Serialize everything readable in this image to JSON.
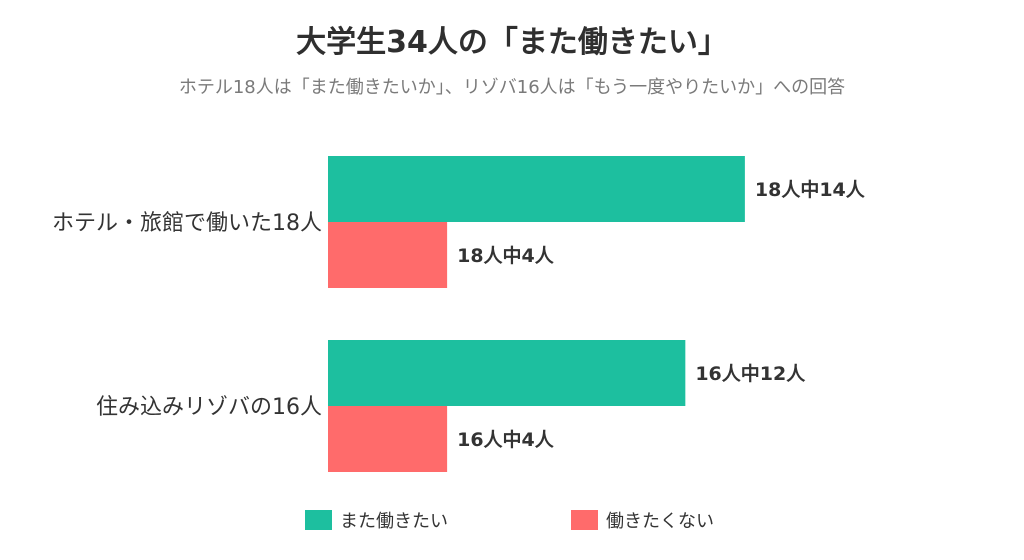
{
  "chart_data": {
    "type": "bar",
    "orientation": "horizontal",
    "title": "大学生34人の「また働きたい」",
    "subtitle": "ホテル18人は「また働きたいか」、リゾバ16人は「もう一度やりたいか」への回答",
    "categories": [
      "ホテル・旅館で働いた18人",
      "住み込みリゾバの16人"
    ],
    "series": [
      {
        "name": "また働きたい",
        "color": "#1dbf9f",
        "values": [
          14,
          12
        ],
        "totals": [
          18,
          16
        ],
        "labels": [
          "18人中14人",
          "16人中12人"
        ]
      },
      {
        "name": "働きたくない",
        "color": "#ff6b6b",
        "values": [
          4,
          4
        ],
        "totals": [
          18,
          16
        ],
        "labels": [
          "18人中4人",
          "16人中4人"
        ]
      }
    ],
    "xlim": [
      0,
      18
    ],
    "grid": false,
    "legend": "bottom"
  }
}
